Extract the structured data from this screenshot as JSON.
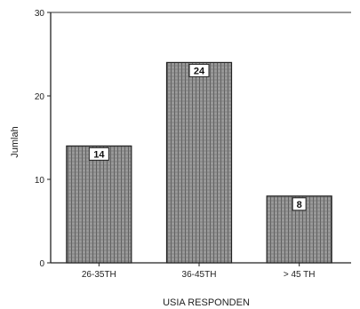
{
  "chart_data": {
    "type": "bar",
    "categories": [
      "26-35TH",
      "36-45TH",
      "> 45 TH"
    ],
    "values": [
      14,
      24,
      8
    ],
    "data_labels": [
      "14",
      "24",
      "8"
    ],
    "xlabel": "USIA RESPONDEN",
    "ylabel": "Jumlah",
    "ylim": [
      0,
      30
    ],
    "yticks": [
      0,
      10,
      20,
      30
    ],
    "grid": false,
    "legend": "none",
    "bar_color": "#8f8f8f",
    "bar_edge_color": "#222222"
  }
}
